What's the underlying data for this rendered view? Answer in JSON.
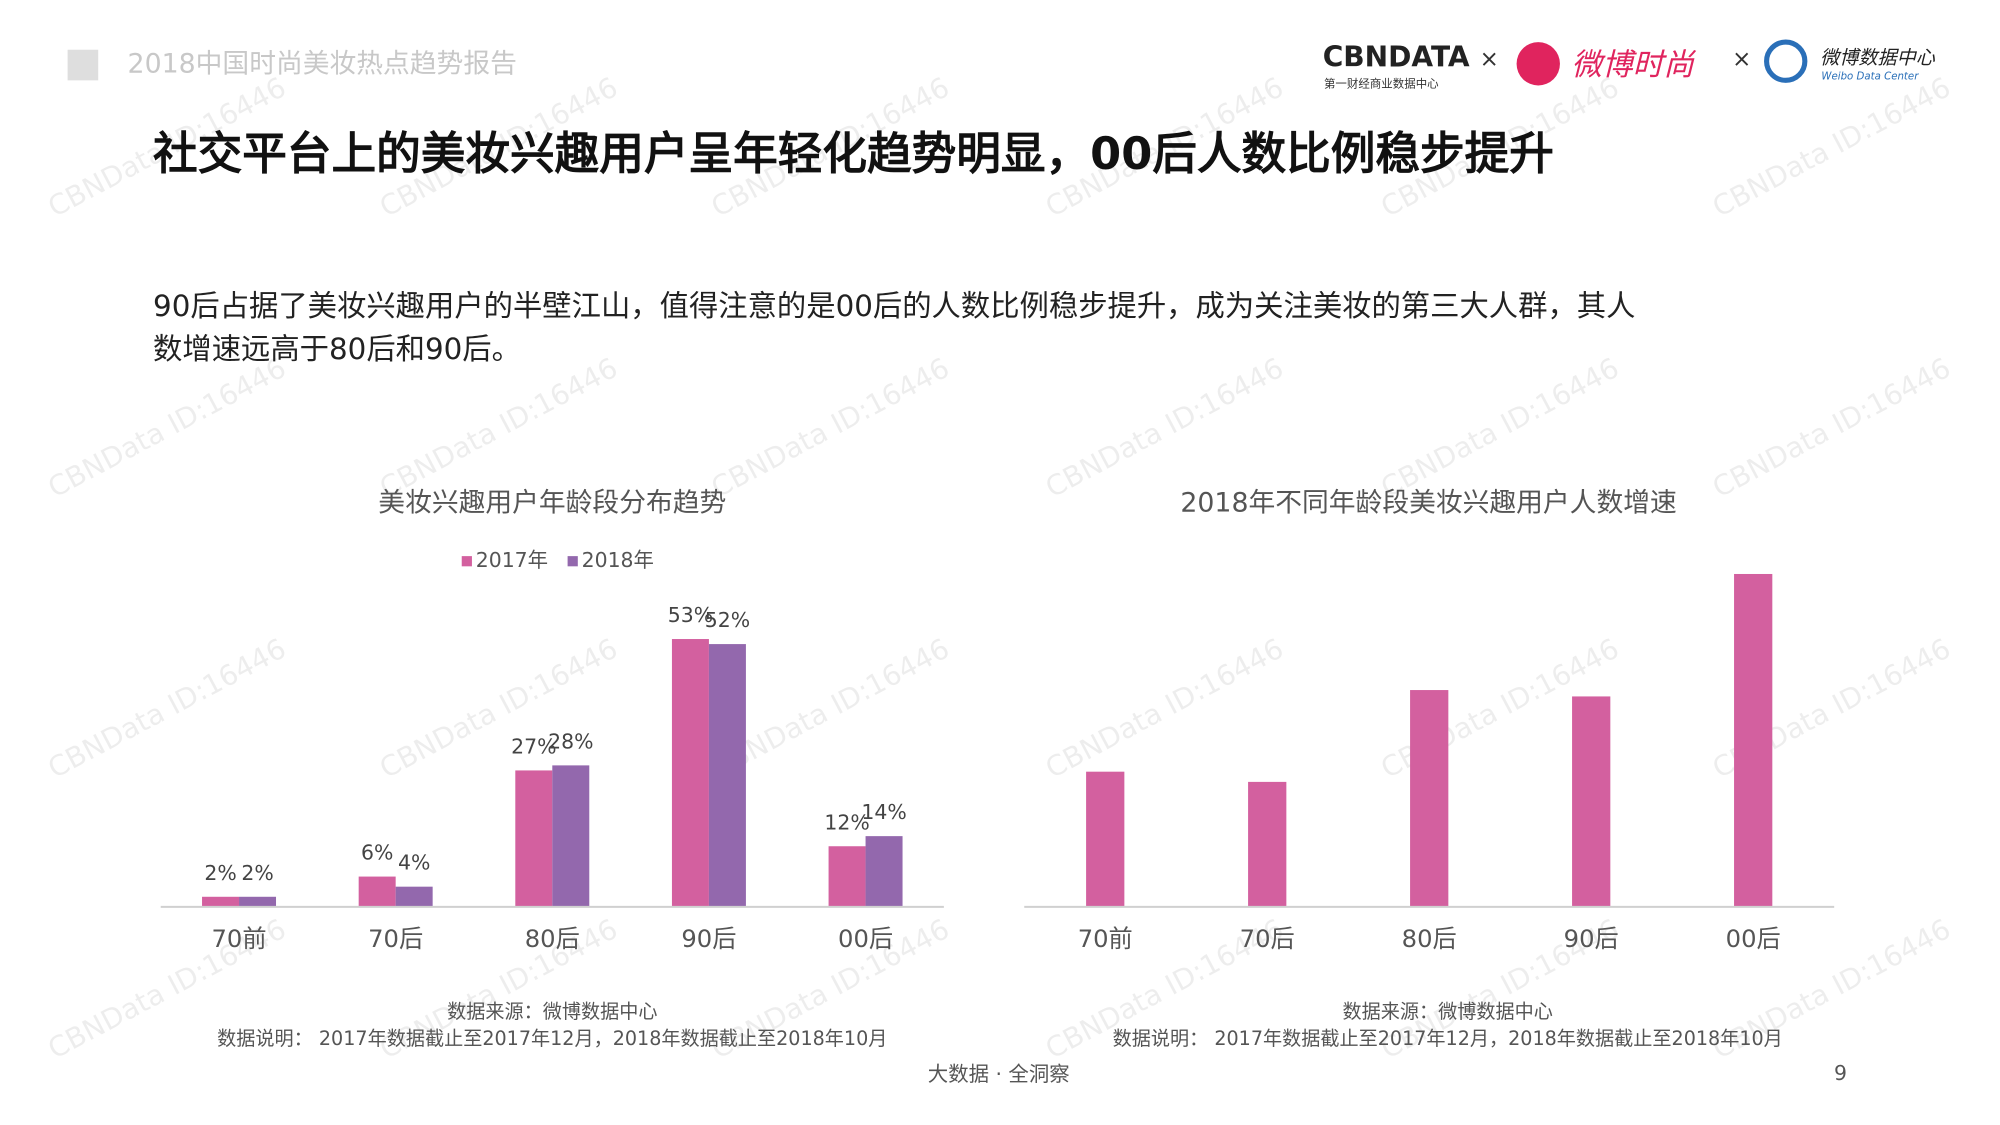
{
  "header": {
    "report_title": "2018中国时尚美妆热点趋势报告",
    "logo_cbn": "CBNDATA",
    "logo_cbn_sub": "第一财经商业数据中心",
    "times": "×",
    "logo_weibo_fashion": "微博时尚",
    "logo_weibo_data": "微博数据中心",
    "logo_weibo_data_en": "Weibo Data Center"
  },
  "headline": "社交平台上的美妆兴趣用户呈年轻化趋势明显，00后人数比例稳步提升",
  "body": [
    "90后占据了美妆兴趣用户的半壁江山，值得注意的是00后的人数比例稳步提升，成为关注美妆的第三大人群，其人",
    "数增速远高于80后和90后。"
  ],
  "watermark": "CBNData ID:16446",
  "footer": {
    "slogan": "大数据 · 全洞察",
    "page": "9"
  },
  "chart_data": [
    {
      "type": "grouped-bar",
      "title": "美妆兴趣用户年龄段分布趋势",
      "categories": [
        "70前",
        "70后",
        "80后",
        "90后",
        "00后"
      ],
      "series": [
        {
          "name": "2017年",
          "color": "#d3609f",
          "values": [
            2,
            6,
            27,
            53,
            12
          ],
          "value_labels": [
            "2%",
            "6%",
            "27%",
            "53%",
            "12%"
          ]
        },
        {
          "name": "2018年",
          "color": "#9368ad",
          "values": [
            2,
            4,
            28,
            52,
            14
          ],
          "value_labels": [
            "2%",
            "4%",
            "28%",
            "52%",
            "14%"
          ]
        }
      ],
      "source": "数据来源：微博数据中心",
      "note": "数据说明： 2017年数据截止至2017年12月，2018年数据截止至2018年10月"
    },
    {
      "type": "bar",
      "title": "2018年不同年龄段美妆兴趣用户人数增速",
      "categories": [
        "70前",
        "70后",
        "80后",
        "90后",
        "00后"
      ],
      "values": [
        106,
        98,
        170,
        165,
        261
      ],
      "color": "#d3609f",
      "source": "数据来源：微博数据中心",
      "note": "数据说明： 2017年数据截止至2017年12月，2018年数据截止至2018年10月"
    }
  ]
}
